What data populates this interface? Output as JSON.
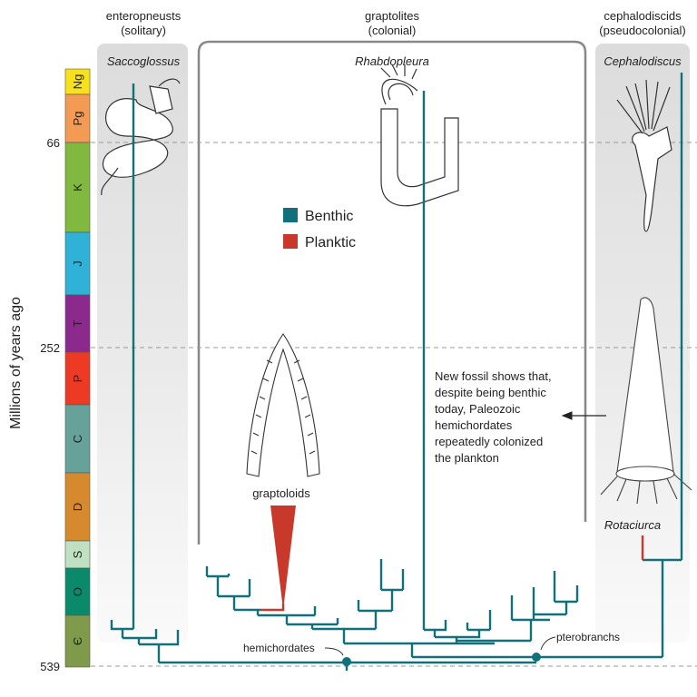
{
  "colors": {
    "benthic": "#11707a",
    "planktic": "#c8392b"
  },
  "axis": {
    "label": "Millions of years ago",
    "ticks": [
      {
        "label": "66",
        "value": 66
      },
      {
        "label": "252",
        "value": 252
      },
      {
        "label": "539",
        "value": 539
      }
    ]
  },
  "periods": [
    {
      "label": "Ng",
      "color": "#f7e11f"
    },
    {
      "label": "Pg",
      "color": "#f39a55"
    },
    {
      "label": "K",
      "color": "#80b840"
    },
    {
      "label": "J",
      "color": "#2fb1d8"
    },
    {
      "label": "T",
      "color": "#8b2a8c"
    },
    {
      "label": "P",
      "color": "#ec3a25"
    },
    {
      "label": "C",
      "color": "#67a29a"
    },
    {
      "label": "D",
      "color": "#d6892d"
    },
    {
      "label": "S",
      "color": "#bfe1c2"
    },
    {
      "label": "O",
      "color": "#0b8a6b"
    },
    {
      "label": "Є",
      "color": "#7f9a4b"
    }
  ],
  "groups": {
    "enteropneusts": {
      "line1": "enteropneusts",
      "line2": "(solitary)",
      "taxon": "Saccoglossus"
    },
    "graptolites": {
      "line1": "graptolites",
      "line2": "(colonial)",
      "taxon": "Rhabdopleura"
    },
    "cephalodiscids": {
      "line1": "cephalodiscids",
      "line2": "(pseudocolonial)",
      "taxon": "Cephalodiscus"
    }
  },
  "legend": [
    {
      "label": "Benthic",
      "color": "#11707a"
    },
    {
      "label": "Planktic",
      "color": "#c8392b"
    }
  ],
  "labels": {
    "graptoloids": "graptoloids",
    "rotaciurca": "Rotaciurca",
    "hemichordates": "hemichordates",
    "pterobranchs": "pterobranchs"
  },
  "annotation": [
    "New fossil shows that,",
    "despite being benthic",
    "today, Paleozoic",
    "hemichordates",
    "repeatedly colonized",
    "the plankton"
  ]
}
